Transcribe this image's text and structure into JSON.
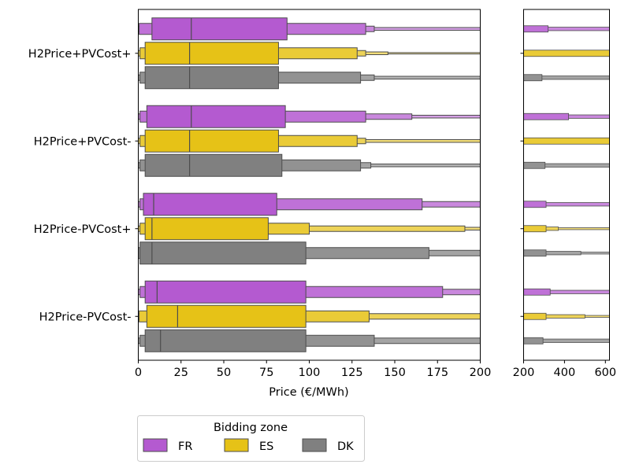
{
  "chart_data": {
    "type": "boxen",
    "xlabel": "Price (€/MWh)",
    "main_xlim": [
      0,
      200
    ],
    "main_xticks": [
      0,
      25,
      50,
      75,
      100,
      125,
      150,
      175,
      200
    ],
    "inset_xlim": [
      200,
      620
    ],
    "inset_xticks": [
      200,
      400,
      600
    ],
    "categories": [
      "H2Price+PVCost+",
      "H2Price+PVCost-",
      "H2Price-PVCost+",
      "H2Price-PVCost-"
    ],
    "legend": {
      "title": "Bidding zone",
      "entries": [
        {
          "label": "FR",
          "color": "#b45ad0"
        },
        {
          "label": "ES",
          "color": "#e6c217"
        },
        {
          "label": "DK",
          "color": "#808080"
        }
      ]
    },
    "series": [
      {
        "name": "FR",
        "color": "#b45ad0",
        "groups": [
          {
            "median": 31,
            "levels": [
              [
                8,
                87
              ],
              [
                0.5,
                133
              ],
              [
                0,
                138
              ],
              [
                0,
                620
              ]
            ],
            "inset_levels": [
              [
                200,
                320
              ],
              [
                200,
                620
              ]
            ]
          },
          {
            "median": 31,
            "levels": [
              [
                5,
                86
              ],
              [
                1,
                133
              ],
              [
                0,
                160
              ],
              [
                0,
                620
              ]
            ],
            "inset_levels": [
              [
                200,
                420
              ],
              [
                200,
                620
              ]
            ]
          },
          {
            "median": 9,
            "levels": [
              [
                3,
                81
              ],
              [
                1,
                166
              ],
              [
                0,
                620
              ]
            ],
            "inset_levels": [
              [
                200,
                310
              ],
              [
                200,
                620
              ]
            ]
          },
          {
            "median": 11,
            "levels": [
              [
                4,
                98
              ],
              [
                1,
                178
              ],
              [
                0,
                620
              ]
            ],
            "inset_levels": [
              [
                200,
                330
              ],
              [
                200,
                620
              ]
            ]
          }
        ]
      },
      {
        "name": "ES",
        "color": "#e6c217",
        "groups": [
          {
            "median": 30,
            "levels": [
              [
                4,
                82
              ],
              [
                1,
                128
              ],
              [
                0,
                133
              ],
              [
                0,
                146
              ],
              [
                0,
                620
              ]
            ],
            "inset_levels": [
              [
                200,
                620
              ]
            ]
          },
          {
            "median": 30,
            "levels": [
              [
                4,
                82
              ],
              [
                1,
                128
              ],
              [
                0,
                133
              ],
              [
                0,
                620
              ]
            ],
            "inset_levels": [
              [
                200,
                620
              ]
            ]
          },
          {
            "median": 8,
            "levels": [
              [
                4,
                76
              ],
              [
                1,
                100
              ],
              [
                0,
                191
              ],
              [
                0,
                620
              ]
            ],
            "inset_levels": [
              [
                200,
                310
              ],
              [
                200,
                370
              ],
              [
                200,
                620
              ]
            ]
          },
          {
            "median": 23,
            "levels": [
              [
                5,
                98
              ],
              [
                0.5,
                135
              ],
              [
                0,
                620
              ]
            ],
            "inset_levels": [
              [
                200,
                310
              ],
              [
                200,
                500
              ],
              [
                200,
                620
              ]
            ]
          }
        ]
      },
      {
        "name": "DK",
        "color": "#808080",
        "groups": [
          {
            "median": 30,
            "levels": [
              [
                4,
                82
              ],
              [
                1,
                130
              ],
              [
                0,
                138
              ],
              [
                0,
                620
              ]
            ],
            "inset_levels": [
              [
                200,
                290
              ],
              [
                200,
                620
              ]
            ]
          },
          {
            "median": 30,
            "levels": [
              [
                4,
                84
              ],
              [
                1,
                130
              ],
              [
                0,
                136
              ],
              [
                0,
                620
              ]
            ],
            "inset_levels": [
              [
                200,
                305
              ],
              [
                200,
                620
              ]
            ]
          },
          {
            "median": 8,
            "levels": [
              [
                1,
                98
              ],
              [
                0,
                170
              ],
              [
                0,
                620
              ]
            ],
            "inset_levels": [
              [
                200,
                310
              ],
              [
                200,
                480
              ],
              [
                200,
                620
              ]
            ]
          },
          {
            "median": 13,
            "levels": [
              [
                4,
                98
              ],
              [
                1,
                138
              ],
              [
                0,
                620
              ]
            ],
            "inset_levels": [
              [
                200,
                295
              ],
              [
                200,
                620
              ]
            ]
          }
        ]
      }
    ]
  }
}
